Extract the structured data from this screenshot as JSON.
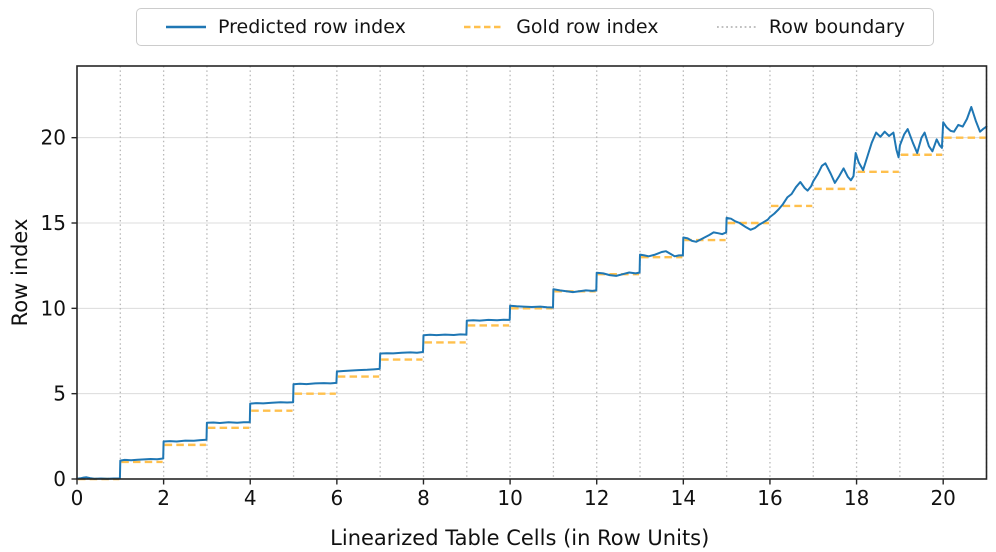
{
  "chart_data": {
    "type": "line",
    "title": "",
    "xlabel": "Linearized Table Cells (in Row Units)",
    "ylabel": "Row index",
    "xlim": [
      0,
      21
    ],
    "ylim": [
      0,
      24.2
    ],
    "xticks": [
      0,
      2,
      4,
      6,
      8,
      10,
      12,
      14,
      16,
      18,
      20
    ],
    "yticks": [
      0,
      5,
      10,
      15,
      20
    ],
    "grid": "horizontal-solid-light",
    "legend_position": "top-center-outside",
    "colors": {
      "predicted": "#1f77b4",
      "gold": "#ffc04d",
      "boundary": "#b8b8b8",
      "grid": "#dcdcdc",
      "spine": "#262626",
      "text": "#111111"
    },
    "legend": [
      {
        "label": "Predicted row index",
        "style": "solid"
      },
      {
        "label": "Gold row index",
        "style": "dashed"
      },
      {
        "label": "Row boundary",
        "style": "dotted"
      }
    ],
    "row_boundaries": [
      1,
      2,
      3,
      4,
      5,
      6,
      7,
      8,
      9,
      10,
      11,
      12,
      13,
      14,
      15,
      16,
      17,
      18,
      19,
      20,
      21
    ],
    "series": [
      {
        "name": "Predicted row index",
        "type": "line",
        "color": "#1f77b4",
        "points": [
          [
            0,
            0.02
          ],
          [
            0.08,
            0.04
          ],
          [
            0.15,
            0.08
          ],
          [
            0.22,
            0.1
          ],
          [
            0.3,
            0.05
          ],
          [
            0.4,
            0.02
          ],
          [
            0.55,
            0.03
          ],
          [
            0.7,
            0.02
          ],
          [
            0.85,
            0.03
          ],
          [
            0.99,
            0.03
          ],
          [
            1,
            1.08
          ],
          [
            1.1,
            1.12
          ],
          [
            1.25,
            1.1
          ],
          [
            1.4,
            1.13
          ],
          [
            1.55,
            1.15
          ],
          [
            1.7,
            1.17
          ],
          [
            1.85,
            1.16
          ],
          [
            1.99,
            1.2
          ],
          [
            2,
            2.2
          ],
          [
            2.15,
            2.22
          ],
          [
            2.3,
            2.2
          ],
          [
            2.5,
            2.25
          ],
          [
            2.7,
            2.24
          ],
          [
            2.85,
            2.28
          ],
          [
            2.99,
            2.3
          ],
          [
            3,
            3.3
          ],
          [
            3.15,
            3.31
          ],
          [
            3.3,
            3.28
          ],
          [
            3.5,
            3.32
          ],
          [
            3.7,
            3.3
          ],
          [
            3.85,
            3.33
          ],
          [
            3.99,
            3.32
          ],
          [
            4,
            4.42
          ],
          [
            4.15,
            4.45
          ],
          [
            4.3,
            4.43
          ],
          [
            4.5,
            4.47
          ],
          [
            4.7,
            4.5
          ],
          [
            4.85,
            4.48
          ],
          [
            4.99,
            4.5
          ],
          [
            5,
            5.55
          ],
          [
            5.15,
            5.58
          ],
          [
            5.3,
            5.56
          ],
          [
            5.5,
            5.6
          ],
          [
            5.7,
            5.62
          ],
          [
            5.85,
            5.6
          ],
          [
            5.99,
            5.63
          ],
          [
            6,
            6.3
          ],
          [
            6.15,
            6.33
          ],
          [
            6.3,
            6.35
          ],
          [
            6.5,
            6.38
          ],
          [
            6.7,
            6.4
          ],
          [
            6.85,
            6.42
          ],
          [
            6.99,
            6.45
          ],
          [
            7,
            7.35
          ],
          [
            7.15,
            7.37
          ],
          [
            7.3,
            7.36
          ],
          [
            7.5,
            7.4
          ],
          [
            7.7,
            7.42
          ],
          [
            7.85,
            7.4
          ],
          [
            7.99,
            7.44
          ],
          [
            8,
            8.42
          ],
          [
            8.15,
            8.45
          ],
          [
            8.3,
            8.43
          ],
          [
            8.5,
            8.46
          ],
          [
            8.7,
            8.44
          ],
          [
            8.85,
            8.47
          ],
          [
            8.99,
            8.46
          ],
          [
            9,
            9.28
          ],
          [
            9.15,
            9.3
          ],
          [
            9.3,
            9.28
          ],
          [
            9.5,
            9.32
          ],
          [
            9.7,
            9.3
          ],
          [
            9.85,
            9.33
          ],
          [
            9.99,
            9.32
          ],
          [
            10,
            10.15
          ],
          [
            10.15,
            10.12
          ],
          [
            10.3,
            10.1
          ],
          [
            10.5,
            10.08
          ],
          [
            10.7,
            10.1
          ],
          [
            10.85,
            10.06
          ],
          [
            10.99,
            10.05
          ],
          [
            11,
            11.12
          ],
          [
            11.15,
            11.05
          ],
          [
            11.3,
            11.0
          ],
          [
            11.45,
            10.95
          ],
          [
            11.6,
            11.0
          ],
          [
            11.75,
            11.05
          ],
          [
            11.9,
            11.02
          ],
          [
            11.99,
            11.05
          ],
          [
            12,
            12.08
          ],
          [
            12.15,
            12.05
          ],
          [
            12.3,
            11.95
          ],
          [
            12.45,
            11.9
          ],
          [
            12.6,
            12.0
          ],
          [
            12.75,
            12.1
          ],
          [
            12.9,
            12.05
          ],
          [
            12.99,
            12.1
          ],
          [
            13,
            13.15
          ],
          [
            13.1,
            13.1
          ],
          [
            13.2,
            13.05
          ],
          [
            13.35,
            13.15
          ],
          [
            13.5,
            13.3
          ],
          [
            13.6,
            13.35
          ],
          [
            13.7,
            13.2
          ],
          [
            13.8,
            13.05
          ],
          [
            13.9,
            13.1
          ],
          [
            13.99,
            13.1
          ],
          [
            14,
            14.15
          ],
          [
            14.1,
            14.1
          ],
          [
            14.2,
            13.95
          ],
          [
            14.3,
            13.9
          ],
          [
            14.45,
            14.1
          ],
          [
            14.6,
            14.3
          ],
          [
            14.7,
            14.45
          ],
          [
            14.8,
            14.4
          ],
          [
            14.9,
            14.35
          ],
          [
            14.99,
            14.45
          ],
          [
            15,
            15.3
          ],
          [
            15.1,
            15.25
          ],
          [
            15.2,
            15.1
          ],
          [
            15.3,
            15.0
          ],
          [
            15.45,
            14.75
          ],
          [
            15.55,
            14.6
          ],
          [
            15.65,
            14.7
          ],
          [
            15.75,
            14.9
          ],
          [
            15.85,
            15.05
          ],
          [
            15.95,
            15.2
          ],
          [
            16,
            15.35
          ],
          [
            16.1,
            15.55
          ],
          [
            16.2,
            15.8
          ],
          [
            16.3,
            16.1
          ],
          [
            16.4,
            16.5
          ],
          [
            16.5,
            16.7
          ],
          [
            16.6,
            17.1
          ],
          [
            16.7,
            17.4
          ],
          [
            16.8,
            17.05
          ],
          [
            16.87,
            16.9
          ],
          [
            16.95,
            17.15
          ],
          [
            17,
            17.45
          ],
          [
            17.1,
            17.85
          ],
          [
            17.2,
            18.35
          ],
          [
            17.28,
            18.5
          ],
          [
            17.4,
            17.9
          ],
          [
            17.5,
            17.35
          ],
          [
            17.6,
            17.75
          ],
          [
            17.7,
            18.2
          ],
          [
            17.8,
            17.7
          ],
          [
            17.87,
            17.5
          ],
          [
            17.93,
            17.75
          ],
          [
            17.98,
            19.1
          ],
          [
            18.05,
            18.55
          ],
          [
            18.15,
            18.1
          ],
          [
            18.25,
            18.9
          ],
          [
            18.35,
            19.7
          ],
          [
            18.45,
            20.3
          ],
          [
            18.55,
            20.05
          ],
          [
            18.65,
            20.35
          ],
          [
            18.75,
            20.1
          ],
          [
            18.85,
            20.3
          ],
          [
            18.92,
            19.3
          ],
          [
            18.97,
            18.85
          ],
          [
            19,
            19.55
          ],
          [
            19.1,
            20.2
          ],
          [
            19.18,
            20.5
          ],
          [
            19.3,
            19.7
          ],
          [
            19.4,
            19.1
          ],
          [
            19.5,
            20.0
          ],
          [
            19.57,
            20.3
          ],
          [
            19.67,
            19.5
          ],
          [
            19.75,
            19.2
          ],
          [
            19.85,
            19.9
          ],
          [
            19.92,
            19.55
          ],
          [
            19.97,
            19.4
          ],
          [
            20,
            20.9
          ],
          [
            20.08,
            20.6
          ],
          [
            20.17,
            20.4
          ],
          [
            20.25,
            20.35
          ],
          [
            20.35,
            20.75
          ],
          [
            20.45,
            20.65
          ],
          [
            20.55,
            21.1
          ],
          [
            20.65,
            21.8
          ],
          [
            20.75,
            21.0
          ],
          [
            20.85,
            20.35
          ],
          [
            20.92,
            20.5
          ],
          [
            21,
            20.65
          ]
        ]
      },
      {
        "name": "Gold row index",
        "type": "step",
        "color": "#ffc04d",
        "steps": [
          [
            0,
            1,
            0
          ],
          [
            1,
            2,
            1
          ],
          [
            2,
            3,
            2
          ],
          [
            3,
            4,
            3
          ],
          [
            4,
            5,
            4
          ],
          [
            5,
            6,
            5
          ],
          [
            6,
            7,
            6
          ],
          [
            7,
            8,
            7
          ],
          [
            8,
            9,
            8
          ],
          [
            9,
            10,
            9
          ],
          [
            10,
            11,
            10
          ],
          [
            11,
            12,
            11
          ],
          [
            12,
            13,
            12
          ],
          [
            13,
            14,
            13
          ],
          [
            14,
            15,
            14
          ],
          [
            15,
            16,
            15
          ],
          [
            16,
            17,
            16
          ],
          [
            17,
            18,
            17
          ],
          [
            18,
            19,
            18
          ],
          [
            19,
            20,
            19
          ],
          [
            20,
            21,
            20
          ]
        ]
      }
    ]
  }
}
